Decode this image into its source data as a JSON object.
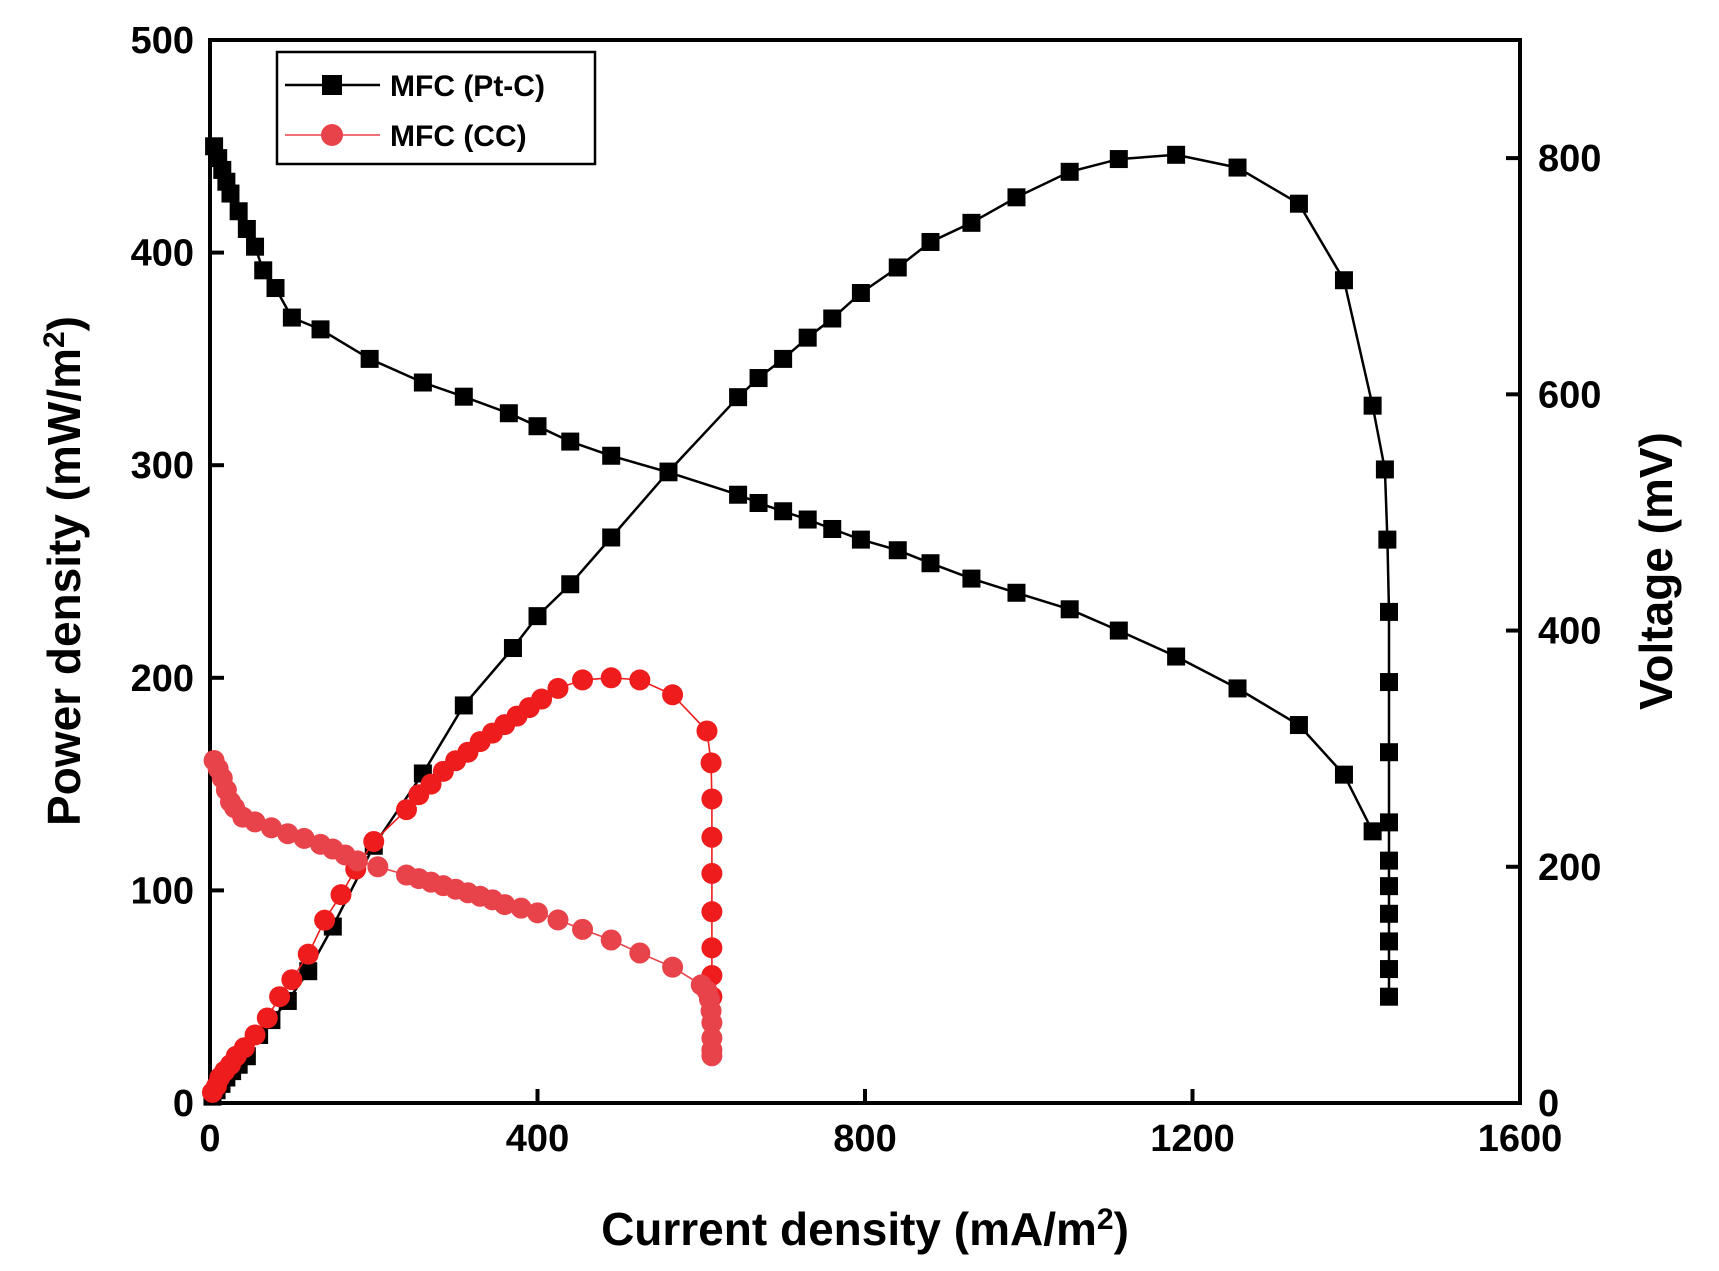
{
  "chart_data": {
    "type": "line",
    "title": "",
    "xlabel": "Current density (mA/m",
    "xlabel_sup": "2",
    "xlabel_end": ")",
    "ylabel_left": "Power density (mW/m",
    "ylabel_left_sup": "2",
    "ylabel_left_end": ")",
    "ylabel_right": "Voltage (mV)",
    "xlim": [
      0,
      1600
    ],
    "ylim_left": [
      0,
      500
    ],
    "ylim_right": [
      0,
      900
    ],
    "xticks": [
      0,
      400,
      800,
      1200,
      1600
    ],
    "yticks_left": [
      0,
      100,
      200,
      300,
      400,
      500
    ],
    "yticks_right": [
      0,
      200,
      400,
      600,
      800
    ],
    "legend_position": "top-left",
    "legend": [
      {
        "label": "MFC (Pt-C)",
        "color": "#000000",
        "marker": "square"
      },
      {
        "label": "MFC (CC)",
        "color": "#e8424a",
        "marker": "circle"
      }
    ],
    "series": [
      {
        "name": "MFC (Pt-C) power density",
        "legend_index": 0,
        "axis": "left",
        "color": "#000000",
        "marker": "square",
        "x": [
          3,
          8,
          14,
          20,
          27,
          35,
          45,
          60,
          75,
          95,
          120,
          150,
          200,
          260,
          310,
          370,
          400,
          440,
          490,
          560,
          645,
          670,
          700,
          730,
          760,
          795,
          840,
          880,
          930,
          985,
          1050,
          1110,
          1180,
          1255,
          1330,
          1385,
          1420,
          1435,
          1438,
          1440,
          1440,
          1440,
          1440,
          1440,
          1440,
          1440,
          1440,
          1440,
          1440
        ],
        "y": [
          3,
          6,
          9,
          12,
          15,
          18,
          22,
          32,
          39,
          48,
          62,
          83,
          121,
          155,
          187,
          214,
          229,
          244,
          266,
          297,
          332,
          341,
          350,
          360,
          369,
          381,
          393,
          405,
          414,
          426,
          438,
          444,
          446,
          440,
          423,
          387,
          328,
          298,
          265,
          231,
          198,
          165,
          132,
          114,
          102,
          89,
          76,
          63,
          50
        ]
      },
      {
        "name": "MFC (Pt-C) voltage",
        "legend_index": 0,
        "axis": "right",
        "color": "#000000",
        "marker": "square",
        "x": [
          5,
          10,
          15,
          20,
          25,
          35,
          45,
          55,
          65,
          80,
          100,
          135,
          195,
          260,
          310,
          365,
          400,
          440,
          490,
          560,
          645,
          670,
          700,
          730,
          760,
          795,
          840,
          880,
          930,
          985,
          1050,
          1110,
          1180,
          1255,
          1330,
          1385,
          1420
        ],
        "y": [
          810,
          800,
          790,
          780,
          770,
          755,
          740,
          725,
          705,
          690,
          665,
          655,
          630,
          610,
          598,
          584,
          573,
          560,
          548,
          534,
          515,
          508,
          501,
          494,
          486,
          477,
          468,
          457,
          444,
          432,
          418,
          400,
          378,
          351,
          320,
          278,
          230
        ]
      },
      {
        "name": "MFC (CC) power density",
        "legend_index": 1,
        "axis": "left",
        "color": "#ee1c1c",
        "marker": "circle",
        "x": [
          3,
          8,
          12,
          18,
          25,
          32,
          42,
          55,
          70,
          85,
          100,
          120,
          140,
          160,
          178,
          200,
          240,
          255,
          270,
          285,
          300,
          315,
          330,
          345,
          360,
          375,
          390,
          405,
          425,
          455,
          490,
          525,
          565,
          607,
          612,
          613,
          613,
          613,
          613,
          613,
          613,
          613
        ],
        "y": [
          5,
          8,
          12,
          15,
          18,
          22,
          26,
          32,
          40,
          50,
          58,
          70,
          86,
          98,
          110,
          123,
          138,
          145,
          150,
          156,
          161,
          165,
          170,
          174,
          178,
          182,
          186,
          190,
          195,
          199,
          200,
          199,
          192,
          175,
          160,
          143,
          125,
          108,
          90,
          73,
          60,
          50
        ]
      },
      {
        "name": "MFC (CC) voltage",
        "legend_index": 1,
        "axis": "right",
        "color": "#e8424a",
        "marker": "circle",
        "x": [
          5,
          10,
          15,
          20,
          25,
          30,
          40,
          55,
          75,
          95,
          115,
          135,
          150,
          165,
          180,
          205,
          240,
          255,
          270,
          285,
          300,
          315,
          330,
          345,
          360,
          380,
          400,
          425,
          455,
          490,
          525,
          565,
          600,
          607,
          610,
          612,
          613,
          613,
          613,
          613
        ],
        "y": [
          290,
          283,
          275,
          265,
          255,
          250,
          242,
          238,
          233,
          228,
          224,
          219,
          215,
          210,
          205,
          200,
          193,
          190,
          187,
          184,
          181,
          178,
          175,
          172,
          168,
          165,
          161,
          155,
          147,
          138,
          127,
          115,
          100,
          95,
          88,
          78,
          68,
          55,
          45,
          40
        ]
      }
    ]
  }
}
